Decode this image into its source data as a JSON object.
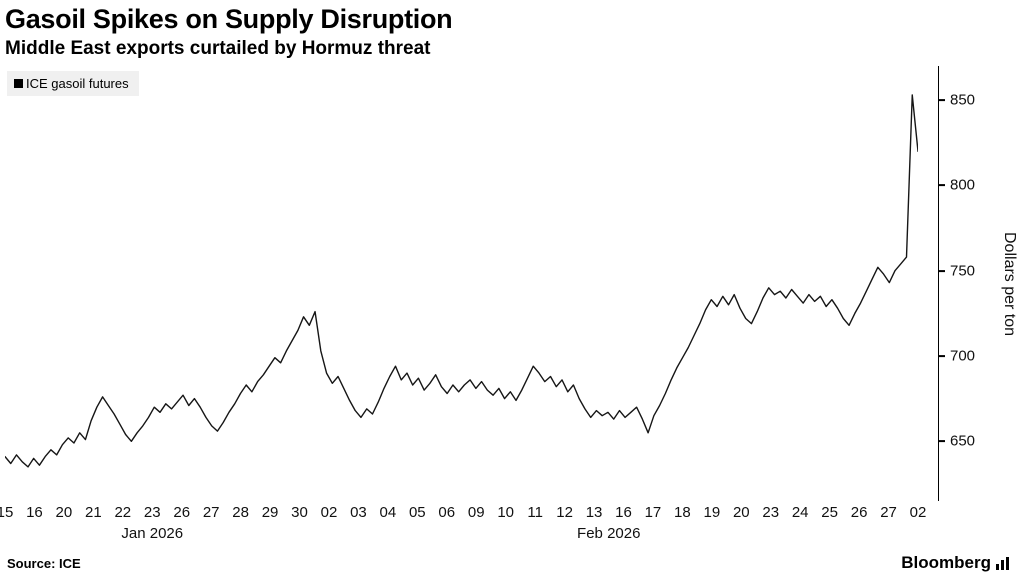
{
  "header": {
    "title": "Gasoil Spikes on Supply Disruption",
    "subtitle": "Middle East exports curtailed by Hormuz threat"
  },
  "legend": {
    "items": [
      {
        "label": "ICE gasoil futures",
        "color": "#000000"
      }
    ]
  },
  "chart_data": {
    "type": "line",
    "title": "Gasoil Spikes on Supply Disruption",
    "series_name": "ICE gasoil futures",
    "ylabel": "Dollars per ton",
    "ylim": [
      615,
      870
    ],
    "yticks": [
      650,
      700,
      750,
      800,
      850
    ],
    "line_color": "#161616",
    "grid": false,
    "legend_position": "top-left",
    "x_tick_labels": [
      "15",
      "16",
      "20",
      "21",
      "22",
      "23",
      "26",
      "27",
      "28",
      "29",
      "30",
      "02",
      "03",
      "04",
      "05",
      "06",
      "09",
      "10",
      "11",
      "12",
      "13",
      "16",
      "17",
      "18",
      "19",
      "20",
      "23",
      "24",
      "25",
      "26",
      "27",
      "02"
    ],
    "months": [
      {
        "label": "Jan 2026",
        "start": 0,
        "end": 10
      },
      {
        "label": "Feb 2026",
        "start": 11,
        "end": 30
      }
    ],
    "values": [
      641,
      637,
      642,
      638,
      635,
      640,
      636,
      641,
      645,
      642,
      648,
      652,
      649,
      655,
      651,
      662,
      670,
      676,
      671,
      666,
      660,
      654,
      650,
      655,
      659,
      664,
      670,
      667,
      672,
      669,
      673,
      677,
      671,
      675,
      670,
      664,
      659,
      656,
      661,
      667,
      672,
      678,
      683,
      679,
      685,
      689,
      694,
      699,
      696,
      703,
      709,
      715,
      723,
      718,
      726,
      703,
      690,
      684,
      688,
      681,
      674,
      668,
      664,
      669,
      666,
      673,
      681,
      688,
      694,
      686,
      690,
      683,
      687,
      680,
      684,
      689,
      682,
      678,
      683,
      679,
      683,
      686,
      681,
      685,
      680,
      677,
      681,
      675,
      679,
      674,
      680,
      687,
      694,
      690,
      685,
      688,
      682,
      686,
      679,
      683,
      675,
      669,
      664,
      668,
      665,
      667,
      663,
      668,
      664,
      667,
      670,
      663,
      655,
      665,
      671,
      678,
      686,
      693,
      699,
      705,
      712,
      719,
      727,
      733,
      729,
      735,
      730,
      736,
      728,
      722,
      719,
      726,
      734,
      740,
      736,
      738,
      734,
      739,
      735,
      731,
      736,
      732,
      735,
      729,
      733,
      728,
      722,
      718,
      725,
      731,
      738,
      745,
      752,
      748,
      743,
      750,
      754,
      758,
      853,
      820
    ]
  },
  "footer": {
    "source": "Source: ICE",
    "brand": "Bloomberg"
  }
}
